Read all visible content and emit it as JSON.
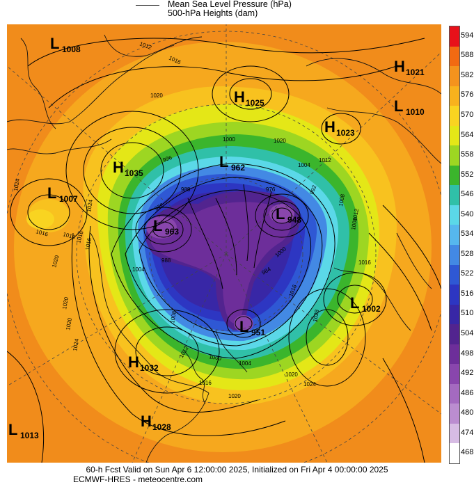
{
  "legend": {
    "line1": "Mean Sea Level Pressure (hPa)",
    "line2": "500-hPa Heights (dam)"
  },
  "colorbar": {
    "labels": [
      "594",
      "588",
      "582",
      "576",
      "570",
      "564",
      "558",
      "552",
      "546",
      "540",
      "534",
      "528",
      "522",
      "516",
      "510",
      "504",
      "498",
      "492",
      "486",
      "480",
      "474",
      "468"
    ],
    "colors": [
      "#e8111a",
      "#f26a12",
      "#f4931d",
      "#f8b21d",
      "#f9d421",
      "#e4e717",
      "#9dd622",
      "#3bb52c",
      "#30c0a8",
      "#5bd8e8",
      "#56b7ee",
      "#4389e4",
      "#2f58d4",
      "#2d36c2",
      "#3827a6",
      "#52248f",
      "#6d2e9a",
      "#8946ad",
      "#a46ac0",
      "#bb8dd0",
      "#d7bce4",
      "#ffffff"
    ]
  },
  "map": {
    "pressure_labels": [
      {
        "kind": "L",
        "value": "1008"
      },
      {
        "kind": "H",
        "value": "1025"
      },
      {
        "kind": "H",
        "value": "1021"
      },
      {
        "kind": "L",
        "value": "1010"
      },
      {
        "kind": "H",
        "value": "1023"
      },
      {
        "kind": "H",
        "value": "1035"
      },
      {
        "kind": "L",
        "value": "962"
      },
      {
        "kind": "L",
        "value": "1007"
      },
      {
        "kind": "L",
        "value": "963"
      },
      {
        "kind": "L",
        "value": "948"
      },
      {
        "kind": "L",
        "value": "1002"
      },
      {
        "kind": "L",
        "value": "951"
      },
      {
        "kind": "H",
        "value": "1032"
      },
      {
        "kind": "H",
        "value": "1028"
      },
      {
        "kind": "L",
        "value": "1013"
      }
    ],
    "isobar_labels": [
      "1012",
      "1016",
      "1020",
      "1016",
      "1020",
      "1024",
      "1016",
      "1020",
      "1016",
      "1020",
      "1024",
      "1000",
      "1004",
      "1008",
      "1012",
      "1016",
      "1020",
      "1024",
      "1028",
      "1016",
      "1016",
      "1012",
      "1008",
      "1004",
      "1000",
      "996",
      "992",
      "988",
      "976",
      "972",
      "984",
      "988",
      "1004",
      "1000",
      "1012",
      "1008",
      "1020",
      "1024",
      "1016",
      "1020"
    ]
  },
  "footer": {
    "line1": "60-h Fcst Valid on Sun Apr  6 12:00:00 2025, Initialized on Fri Apr  4 00:00:00 2025",
    "line2": "ECMWF-HRES  - meteocentre.com"
  }
}
